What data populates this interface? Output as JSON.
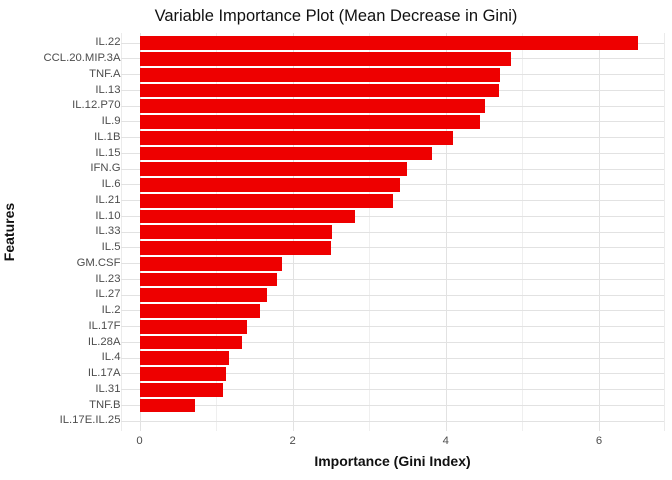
{
  "chart_data": {
    "type": "bar",
    "orientation": "horizontal",
    "title": "Variable Importance Plot (Mean Decrease in Gini)",
    "xlabel": "Importance (Gini Index)",
    "ylabel": "Features",
    "categories": [
      "IL.22",
      "CCL.20.MIP.3A",
      "TNF.A",
      "IL.13",
      "IL.12.P70",
      "IL.9",
      "IL.1B",
      "IL.15",
      "IFN.G",
      "IL.6",
      "IL.21",
      "IL.10",
      "IL.33",
      "IL.5",
      "GM.CSF",
      "IL.23",
      "IL.27",
      "IL.2",
      "IL.17F",
      "IL.28A",
      "IL.4",
      "IL.17A",
      "IL.31",
      "TNF.B",
      "IL.17E.IL.25"
    ],
    "values": [
      6.51,
      4.85,
      4.71,
      4.69,
      4.51,
      4.44,
      4.09,
      3.82,
      3.49,
      3.4,
      3.31,
      2.82,
      2.51,
      2.5,
      1.86,
      1.79,
      1.67,
      1.58,
      1.41,
      1.34,
      1.17,
      1.13,
      1.09,
      0.72,
      0.0
    ],
    "xlim": [
      0,
      6.88
    ],
    "x_ticks": [
      0,
      2,
      4,
      6
    ],
    "x_tick_labels": [
      "0",
      "2",
      "4",
      "6"
    ],
    "x_minor_ticks": [
      1,
      3,
      5
    ],
    "grid": true,
    "legend": false,
    "colors": {
      "bar": "#ee0000",
      "grid_major": "#e2e2e2",
      "grid_minor": "#efefef",
      "panel_edge": "#ebebeb",
      "tick_label": "#4d4d4d",
      "text": "#111111",
      "background": "#ffffff"
    }
  }
}
